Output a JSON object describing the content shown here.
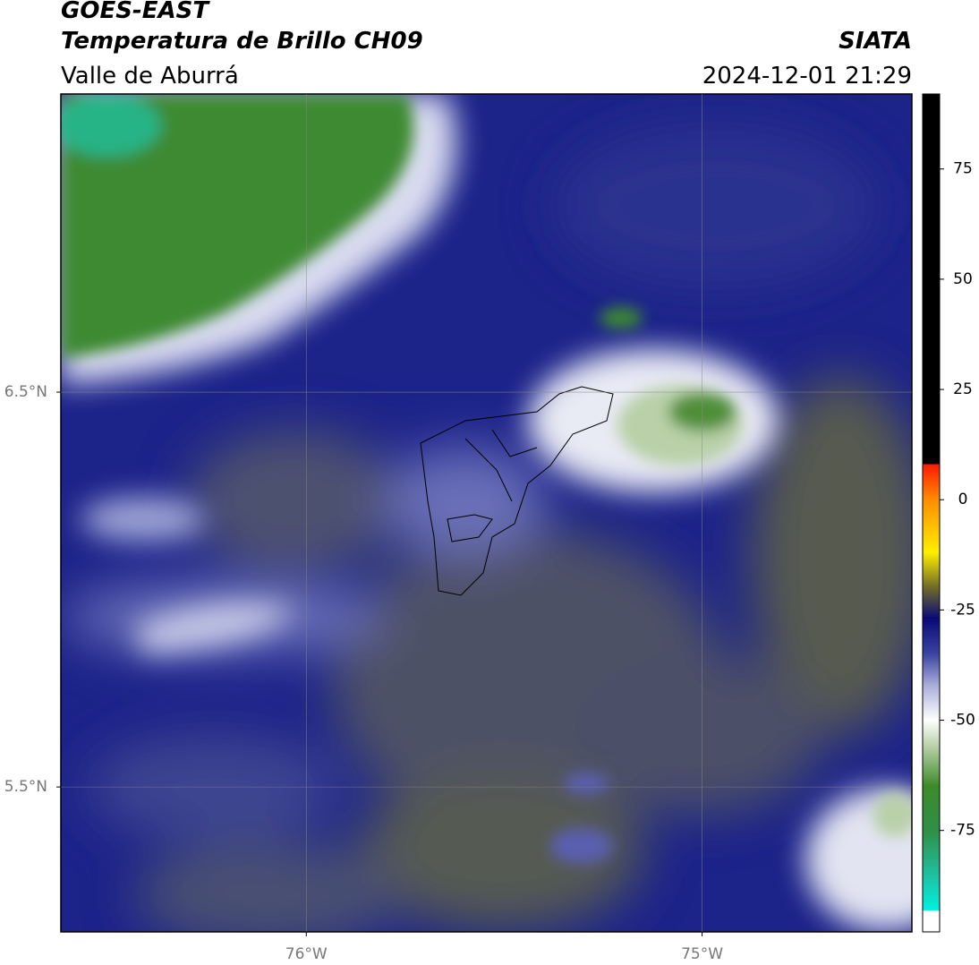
{
  "chart_data": {
    "type": "map",
    "title": "GOES-EAST",
    "subtitle": "Temperatura de Brillo CH09",
    "region": "Valle de Aburrá",
    "source": "SIATA",
    "timestamp": "2024-12-01 21:29",
    "xlim": [
      -76.62,
      -74.47
    ],
    "ylim": [
      5.133,
      7.255
    ],
    "xticks": [
      {
        "value": -76,
        "label": "76°W"
      },
      {
        "value": -75,
        "label": "75°W"
      }
    ],
    "yticks": [
      {
        "value": 6.5,
        "label": "6.5°N"
      },
      {
        "value": 5.5,
        "label": "5.5°N"
      }
    ],
    "grid": true,
    "colorbar_lim": [
      -98,
      92
    ],
    "colorbar_ticks": [
      75,
      50,
      25,
      0,
      -25,
      -50,
      -75
    ]
  }
}
